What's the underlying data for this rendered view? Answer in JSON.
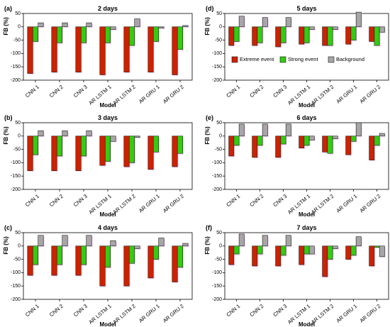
{
  "colors": {
    "extreme": "#cc2200",
    "strong": "#33cc11",
    "background": "#a6a6a6",
    "axis": "#000000",
    "shadow": "#f4b8f4"
  },
  "legend": {
    "items": [
      {
        "key": "extreme",
        "label": "Extreme event"
      },
      {
        "key": "strong",
        "label": "Strong event"
      },
      {
        "key": "background",
        "label": "Background"
      }
    ]
  },
  "chart_data": [
    {
      "type": "bar",
      "panel": "(a)",
      "title": "2 days",
      "xlabel": "Model",
      "ylabel": "FB (%)",
      "ylim": [
        -200,
        50
      ],
      "yticks": [
        -200,
        -150,
        -100,
        -50,
        0,
        50
      ],
      "categories": [
        "CNN 1",
        "CNN 2",
        "CNN 3",
        "AR LSTM 1",
        "AR LSTM 2",
        "AR GRU 1",
        "AR GRU 2"
      ],
      "series": [
        {
          "name": "Extreme event",
          "key": "extreme",
          "values": [
            -175,
            -170,
            -170,
            -180,
            -170,
            -170,
            -180
          ]
        },
        {
          "name": "Strong event",
          "key": "strong",
          "values": [
            -55,
            -60,
            -60,
            -60,
            -70,
            -55,
            -85
          ]
        },
        {
          "name": "Background",
          "key": "background",
          "values": [
            15,
            15,
            15,
            -10,
            30,
            -5,
            5
          ]
        }
      ]
    },
    {
      "type": "bar",
      "panel": "(b)",
      "title": "3 days",
      "xlabel": "Model",
      "ylabel": "FB (%)",
      "ylim": [
        -200,
        50
      ],
      "yticks": [
        -200,
        -150,
        -100,
        -50,
        0,
        50
      ],
      "categories": [
        "CNN 1",
        "CNN 2",
        "CNN 3",
        "AR LSTM 1",
        "AR LSTM 2",
        "AR GRU 1",
        "AR GRU 2"
      ],
      "series": [
        {
          "name": "Extreme event",
          "key": "extreme",
          "values": [
            -130,
            -130,
            -130,
            -110,
            -115,
            -125,
            -115
          ]
        },
        {
          "name": "Strong event",
          "key": "strong",
          "values": [
            -70,
            -75,
            -75,
            -95,
            -100,
            -60,
            -65
          ]
        },
        {
          "name": "Background",
          "key": "background",
          "values": [
            20,
            20,
            20,
            -20,
            -5,
            0,
            0
          ]
        }
      ]
    },
    {
      "type": "bar",
      "panel": "(c)",
      "title": "4 days",
      "xlabel": "Model",
      "ylabel": "FB (%)",
      "ylim": [
        -200,
        50
      ],
      "yticks": [
        -200,
        -150,
        -100,
        -50,
        0,
        50
      ],
      "categories": [
        "CNN 1",
        "CNN 2",
        "CNN 3",
        "AR LSTM 1",
        "AR LSTM 2",
        "AR GRU 1",
        "AR GRU 2"
      ],
      "series": [
        {
          "name": "Extreme event",
          "key": "extreme",
          "values": [
            -110,
            -110,
            -110,
            -150,
            -150,
            -120,
            -135
          ]
        },
        {
          "name": "Strong event",
          "key": "strong",
          "values": [
            -70,
            -70,
            -70,
            -80,
            -65,
            -50,
            -80
          ]
        },
        {
          "name": "Background",
          "key": "background",
          "values": [
            40,
            40,
            40,
            20,
            -10,
            30,
            10
          ]
        }
      ]
    },
    {
      "type": "bar",
      "panel": "(d)",
      "title": "5 days",
      "xlabel": "Model",
      "ylabel": "FB (%)",
      "ylim": [
        -200,
        50
      ],
      "yticks": [
        -200,
        -150,
        -100,
        -50,
        0,
        50
      ],
      "categories": [
        "CNN 1",
        "CNN 2",
        "CNN 3",
        "AR LSTM 1",
        "AR LSTM 2",
        "AR GRU 1",
        "AR GRU 2"
      ],
      "series": [
        {
          "name": "Extreme event",
          "key": "extreme",
          "values": [
            -70,
            -70,
            -75,
            -65,
            -70,
            -65,
            -55
          ]
        },
        {
          "name": "Strong event",
          "key": "strong",
          "values": [
            -55,
            -60,
            -60,
            -60,
            -70,
            -50,
            -70
          ]
        },
        {
          "name": "Background",
          "key": "background",
          "values": [
            40,
            35,
            35,
            -10,
            -10,
            55,
            -20
          ]
        }
      ]
    },
    {
      "type": "bar",
      "panel": "(e)",
      "title": "6 days",
      "xlabel": "Model",
      "ylabel": "FB (%)",
      "ylim": [
        -200,
        50
      ],
      "yticks": [
        -200,
        -150,
        -100,
        -50,
        0,
        50
      ],
      "categories": [
        "CNN 1",
        "CNN 2",
        "CNN 3",
        "AR LSTM 1",
        "AR LSTM 2",
        "AR GRU 1",
        "AR GRU 2"
      ],
      "series": [
        {
          "name": "Extreme event",
          "key": "extreme",
          "values": [
            -75,
            -80,
            -80,
            -45,
            -60,
            -70,
            -90
          ]
        },
        {
          "name": "Strong event",
          "key": "strong",
          "values": [
            -35,
            -35,
            -30,
            -35,
            -65,
            -20,
            -35
          ]
        },
        {
          "name": "Background",
          "key": "background",
          "values": [
            45,
            45,
            45,
            -15,
            -10,
            50,
            10
          ]
        }
      ]
    },
    {
      "type": "bar",
      "panel": "(f)",
      "title": "7 days",
      "xlabel": "Model",
      "ylabel": "FB (%)",
      "ylim": [
        -200,
        50
      ],
      "yticks": [
        -200,
        -150,
        -100,
        -50,
        0,
        50
      ],
      "categories": [
        "CNN 1",
        "CNN 2",
        "CNN 3",
        "AR LSTM 1",
        "AR LSTM 2",
        "AR GRU 1",
        "AR GRU 2"
      ],
      "series": [
        {
          "name": "Extreme event",
          "key": "extreme",
          "values": [
            -70,
            -75,
            -75,
            -70,
            -115,
            -50,
            -75
          ]
        },
        {
          "name": "Strong event",
          "key": "strong",
          "values": [
            -30,
            -30,
            -35,
            -30,
            -50,
            -35,
            -5
          ]
        },
        {
          "name": "Background",
          "key": "background",
          "values": [
            45,
            40,
            40,
            -30,
            -10,
            35,
            -40
          ]
        }
      ]
    }
  ]
}
